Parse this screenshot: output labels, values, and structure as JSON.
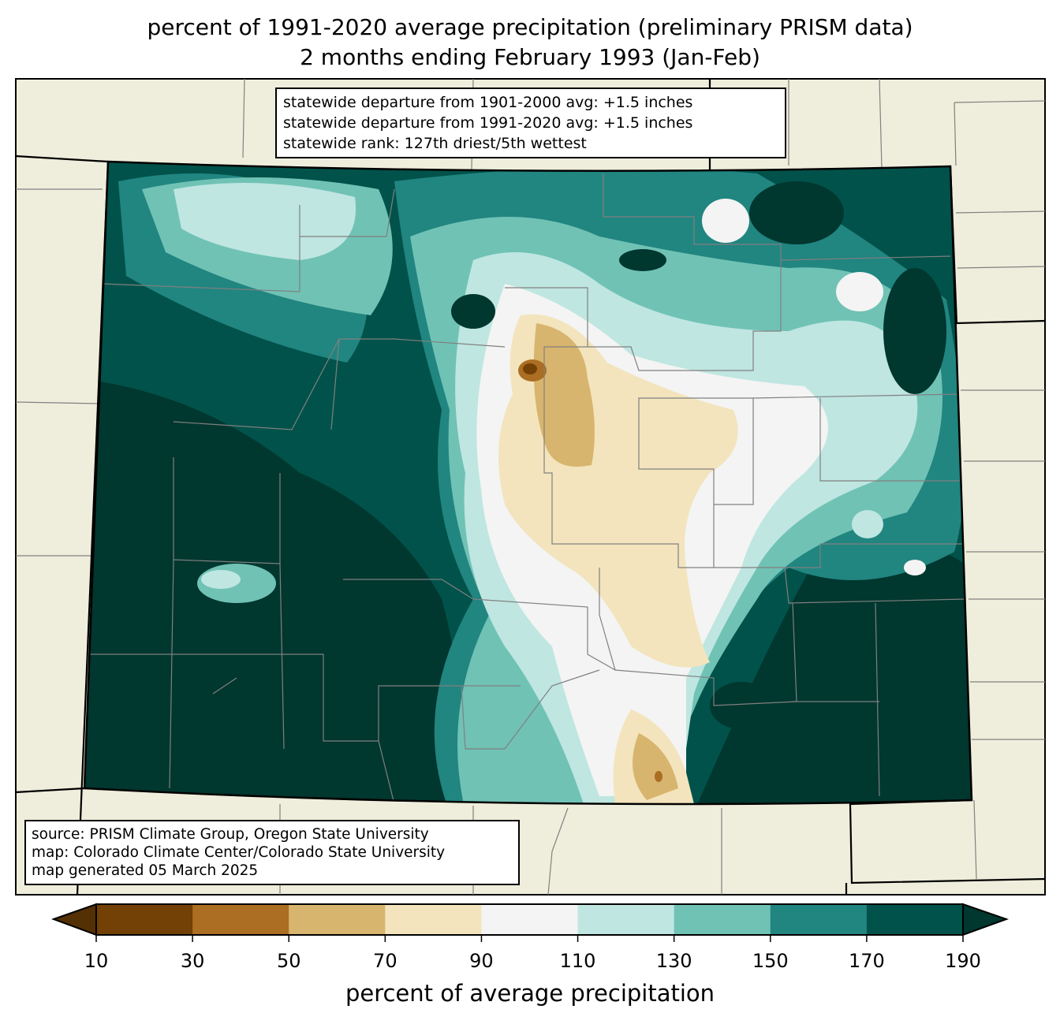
{
  "title": {
    "line1": "percent of 1991-2020 average precipitation (preliminary PRISM data)",
    "line2": "2 months ending February 1993 (Jan-Feb)"
  },
  "stats": {
    "line1": "statewide departure from 1901-2000 avg: +1.5 inches",
    "line2": "statewide departure from 1991-2020 avg: +1.5 inches",
    "line3": "statewide rank: 127th driest/5th wettest"
  },
  "credits": {
    "line1": "source: PRISM Climate Group, Oregon State University",
    "line2": "map: Colorado Climate Center/Colorado State University",
    "line3": "map generated 05 March 2025"
  },
  "colorbar": {
    "label": "percent of average precipitation",
    "ticks": [
      "10",
      "30",
      "50",
      "70",
      "90",
      "110",
      "130",
      "150",
      "170",
      "190"
    ],
    "bins": [
      {
        "range": "10-30",
        "color": "#734005"
      },
      {
        "range": "30-50",
        "color": "#ab6e22"
      },
      {
        "range": "50-70",
        "color": "#d8b56e"
      },
      {
        "range": "70-90",
        "color": "#f3e4bd"
      },
      {
        "range": "90-110",
        "color": "#f3f4f3"
      },
      {
        "range": "110-130",
        "color": "#bfe6e1"
      },
      {
        "range": "130-150",
        "color": "#70c2b5"
      },
      {
        "range": "150-170",
        "color": "#218580"
      },
      {
        "range": "170-190",
        "color": "#01524a"
      }
    ],
    "under_color": "#543005",
    "over_color": "#00372f"
  },
  "colors": {
    "land": "#efeedc",
    "county_lines": "#808080"
  }
}
